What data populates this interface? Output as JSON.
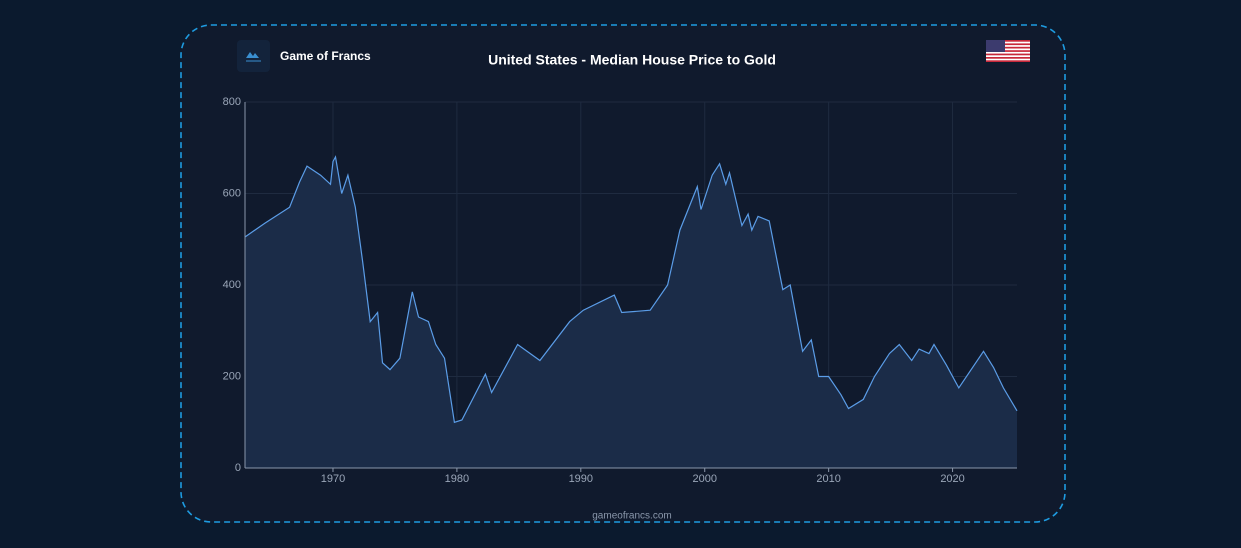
{
  "chart_data": {
    "type": "area",
    "title": "United States - Median House Price to Gold",
    "brand": "Game of Francs",
    "footer": "gameofrancs.com",
    "color": "#5b9de8",
    "fill": "#1b2c48",
    "grid": true,
    "xlim": [
      1962.9,
      2025.2
    ],
    "ylim": [
      0,
      800
    ],
    "xticks": [
      1970,
      1980,
      1990,
      2000,
      2010,
      2020
    ],
    "yticks": [
      0,
      200,
      400,
      600,
      800
    ],
    "x": [
      1962.9,
      1964.5,
      1966.5,
      1967.3,
      1967.9,
      1969.0,
      1969.8,
      1970.0,
      1970.2,
      1970.7,
      1971.2,
      1971.8,
      1972.4,
      1973.0,
      1973.6,
      1974.0,
      1974.6,
      1975.4,
      1976.4,
      1976.9,
      1977.7,
      1978.3,
      1979.0,
      1979.8,
      1980.4,
      1982.3,
      1982.8,
      1984.9,
      1986.7,
      1989.1,
      1990.2,
      1992.7,
      1993.3,
      1995.6,
      1997.0,
      1998.0,
      1999.4,
      1999.7,
      2000.6,
      2001.2,
      2001.7,
      2002.0,
      2003.0,
      2003.5,
      2003.8,
      2004.3,
      2005.2,
      2006.3,
      2006.9,
      2007.9,
      2008.6,
      2009.2,
      2010.0,
      2011.0,
      2011.6,
      2012.8,
      2013.7,
      2014.9,
      2015.7,
      2016.7,
      2017.3,
      2018.1,
      2018.5,
      2019.5,
      2020.5,
      2022.5,
      2023.3,
      2024.1,
      2025.2
    ],
    "values": [
      505,
      535,
      570,
      625,
      660,
      640,
      620,
      670,
      680,
      600,
      640,
      570,
      450,
      320,
      340,
      230,
      215,
      240,
      385,
      330,
      320,
      270,
      240,
      100,
      105,
      205,
      165,
      270,
      235,
      320,
      345,
      378,
      340,
      345,
      400,
      520,
      615,
      565,
      640,
      665,
      620,
      645,
      530,
      555,
      520,
      550,
      540,
      390,
      400,
      255,
      280,
      200,
      200,
      160,
      130,
      150,
      200,
      250,
      270,
      235,
      260,
      250,
      270,
      225,
      175,
      255,
      220,
      175,
      125
    ]
  }
}
